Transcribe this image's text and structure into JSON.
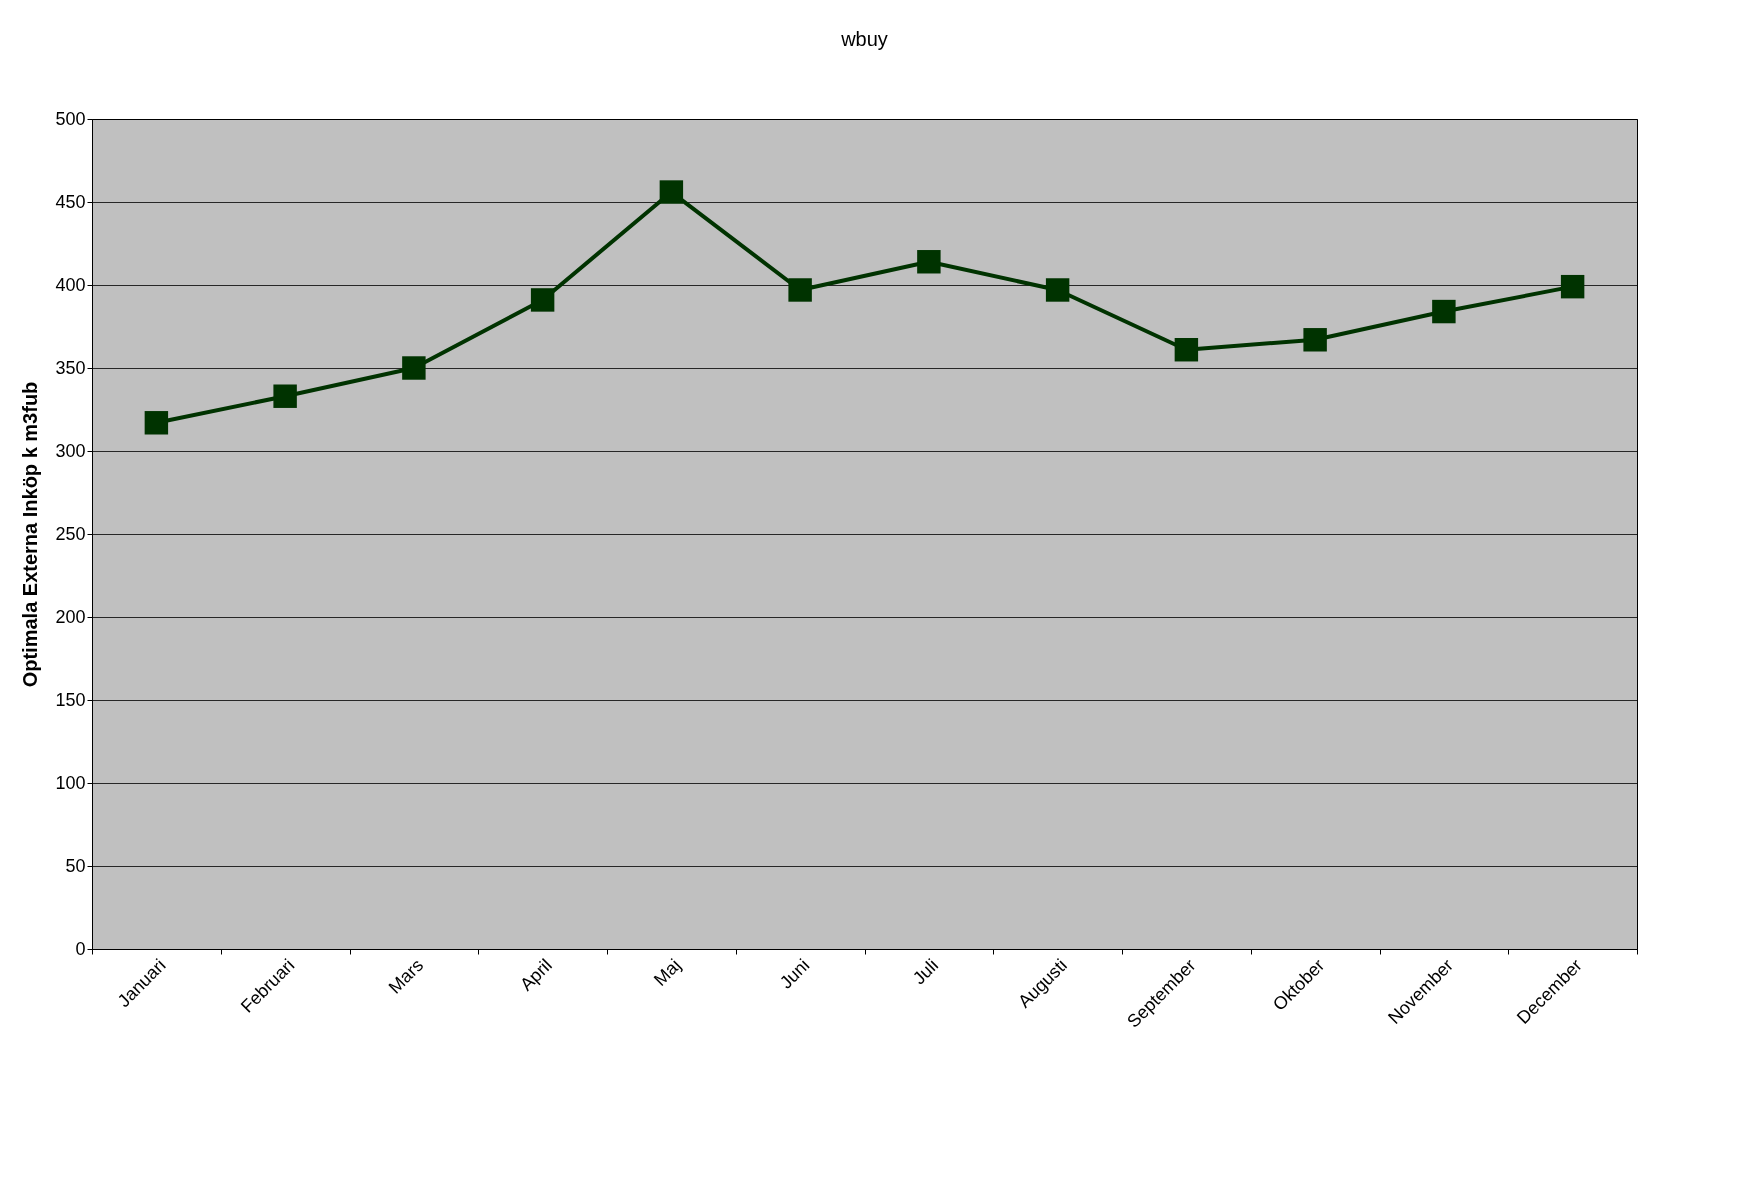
{
  "chart_data": {
    "type": "line",
    "title": "wbuy",
    "ylabel": "Optimala Externa Inköp k m3fub",
    "categories": [
      "Januari",
      "Februari",
      "Mars",
      "April",
      "Maj",
      "Juni",
      "Juli",
      "Augusti",
      "September",
      "Oktober",
      "November",
      "December"
    ],
    "series": [
      {
        "color": "#003300",
        "values": [
          317,
          333,
          350,
          391,
          456,
          397,
          414,
          397,
          361,
          367,
          384,
          399
        ]
      }
    ],
    "ylim": [
      0,
      500
    ],
    "yticks": [
      0,
      50,
      100,
      150,
      200,
      250,
      300,
      350,
      400,
      450,
      500
    ],
    "grid": "y",
    "legend": false,
    "marker": "square",
    "line_style": "solid"
  }
}
